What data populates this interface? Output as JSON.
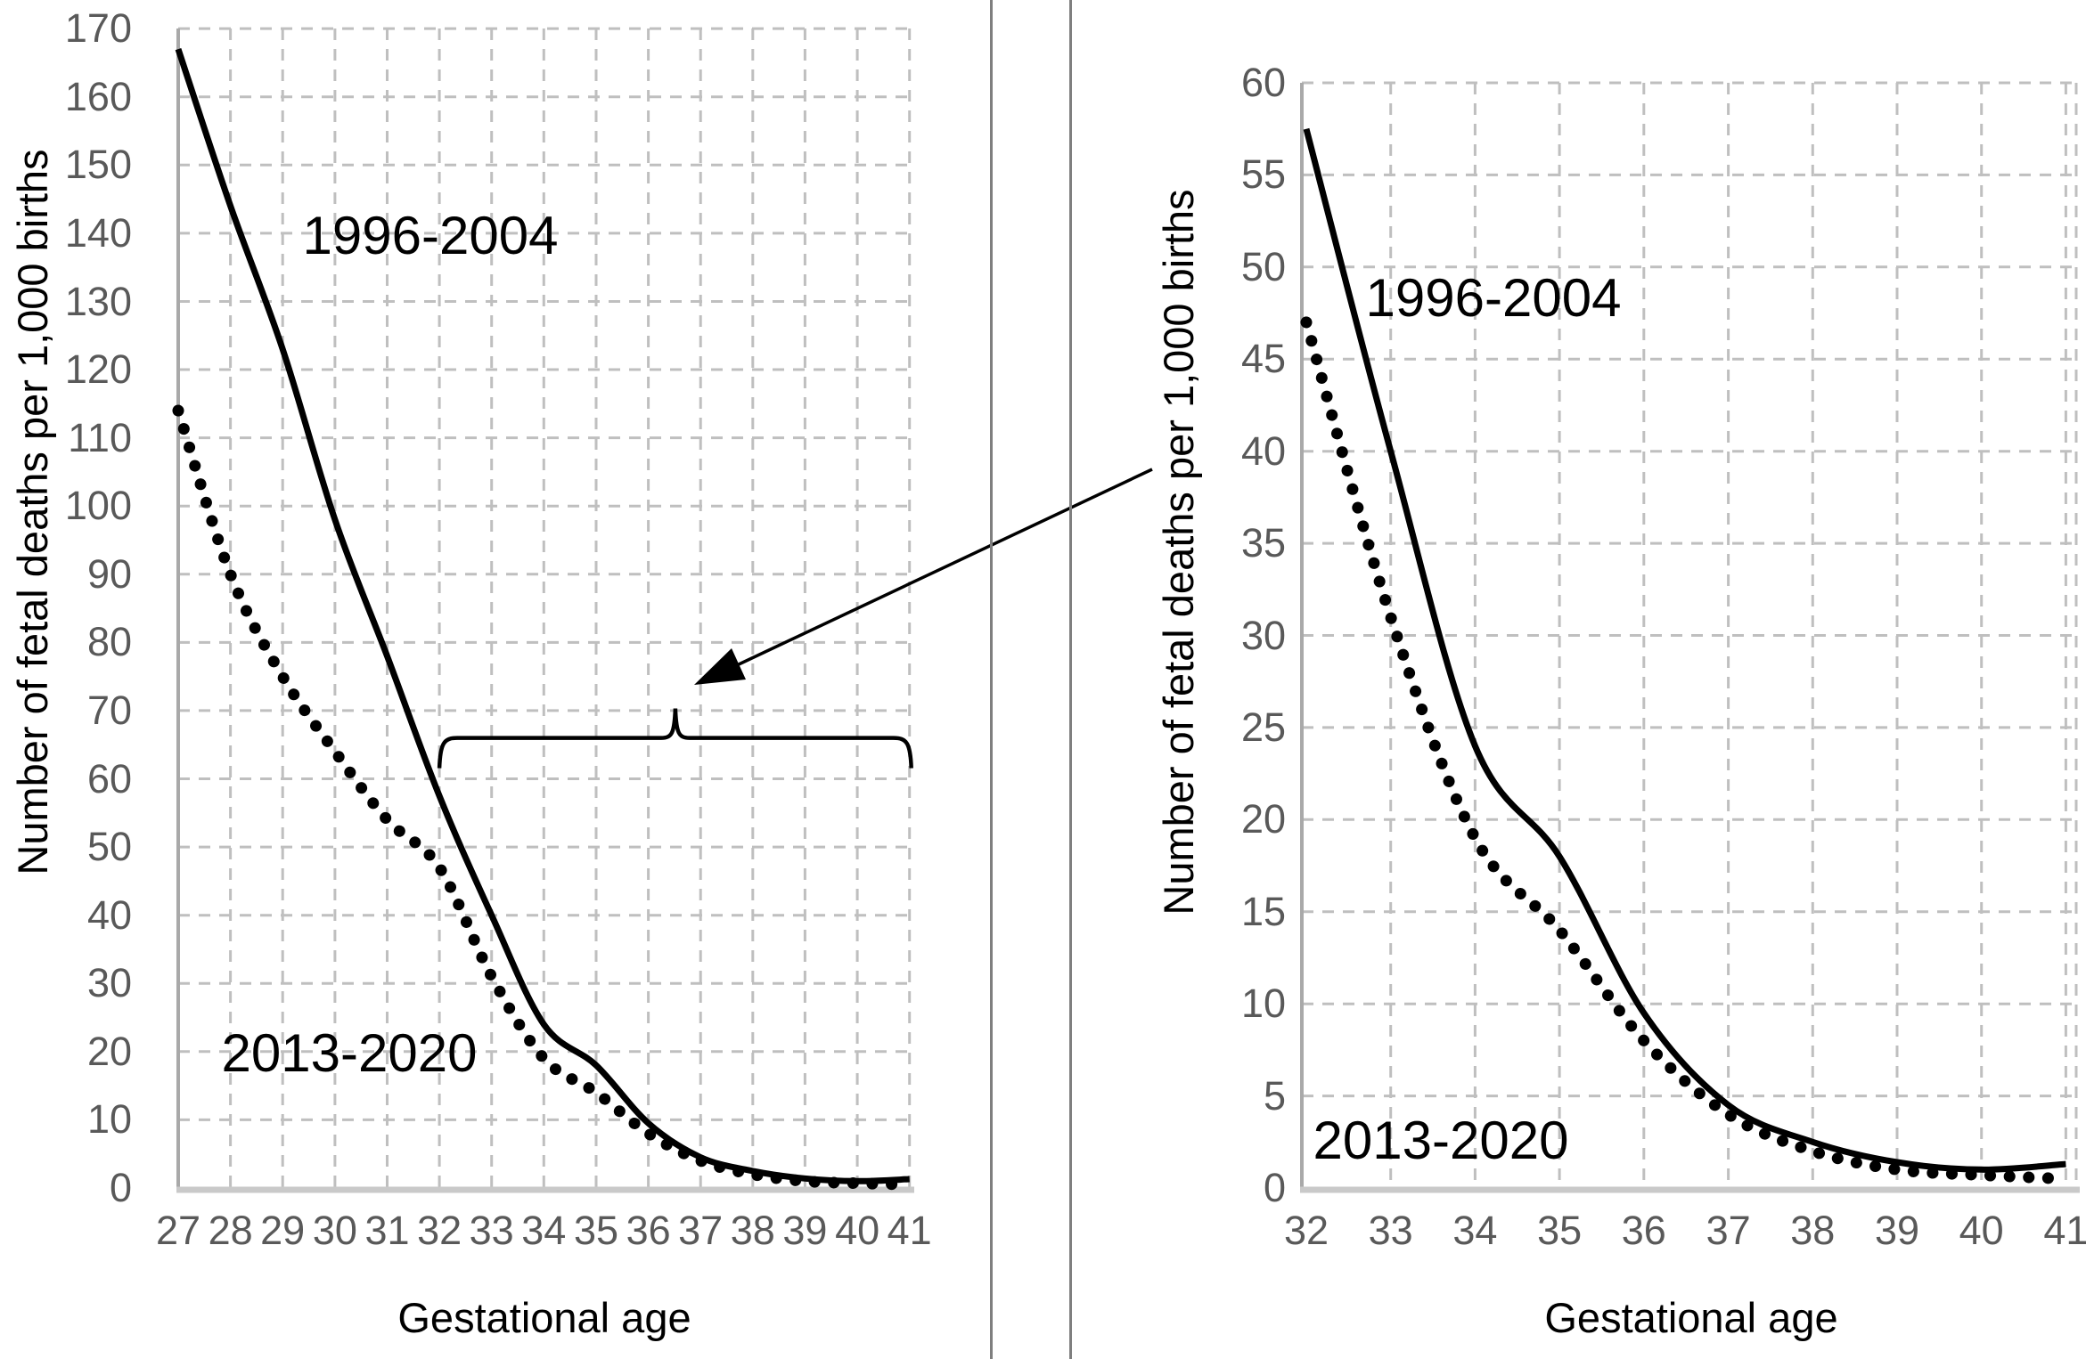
{
  "shared": {
    "y_axis_title": "Number of fetal deaths per 1,000 births",
    "x_axis_title": "Gestational age",
    "solid_series_name": "1996-2004",
    "dotted_series_name": "2013-2020"
  },
  "colors": {
    "line": "#000000",
    "grid": "#bfbfbf",
    "axis": "#a9a9a9",
    "baseline": "#c9c9c9",
    "tick_text": "#595959",
    "divider": "#7f7f7f"
  },
  "chart_data": [
    {
      "type": "line",
      "panel": "left",
      "title": "",
      "xlabel": "Gestational age",
      "ylabel": "Number of fetal deaths per 1,000 births",
      "categories": [
        27,
        28,
        29,
        30,
        31,
        32,
        33,
        34,
        35,
        36,
        37,
        38,
        39,
        40,
        41
      ],
      "ylim": [
        0,
        170
      ],
      "ytick_step": 10,
      "grid": true,
      "legend_position": "inline-labels",
      "series": [
        {
          "name": "1996-2004",
          "style": "solid",
          "values": [
            167,
            144,
            123,
            98,
            78,
            57.5,
            40,
            24,
            18,
            9.5,
            4.5,
            2.5,
            1.4,
            1.0,
            1.3
          ]
        },
        {
          "name": "2013-2020",
          "style": "dotted",
          "values": [
            114,
            90,
            75,
            64,
            54,
            47,
            31,
            19,
            14,
            8,
            4,
            2,
            1.0,
            0.7,
            0.5
          ]
        }
      ],
      "annotations": {
        "brace_from_week": 32,
        "brace_to_week": 41,
        "brace_at_value": 66
      }
    },
    {
      "type": "line",
      "panel": "right",
      "title": "",
      "xlabel": "Gestational age",
      "ylabel": "Number of fetal deaths per 1,000 births",
      "categories": [
        32,
        33,
        34,
        35,
        36,
        37,
        38,
        39,
        40,
        41
      ],
      "ylim": [
        0,
        60
      ],
      "ytick_step": 5,
      "grid": true,
      "legend_position": "inline-labels",
      "series": [
        {
          "name": "1996-2004",
          "style": "solid",
          "values": [
            57.5,
            40,
            24,
            18,
            9.5,
            4.5,
            2.5,
            1.4,
            1.0,
            1.3
          ]
        },
        {
          "name": "2013-2020",
          "style": "dotted",
          "values": [
            47,
            31,
            19,
            14,
            8,
            4,
            2,
            1.0,
            0.7,
            0.5
          ]
        }
      ]
    }
  ]
}
